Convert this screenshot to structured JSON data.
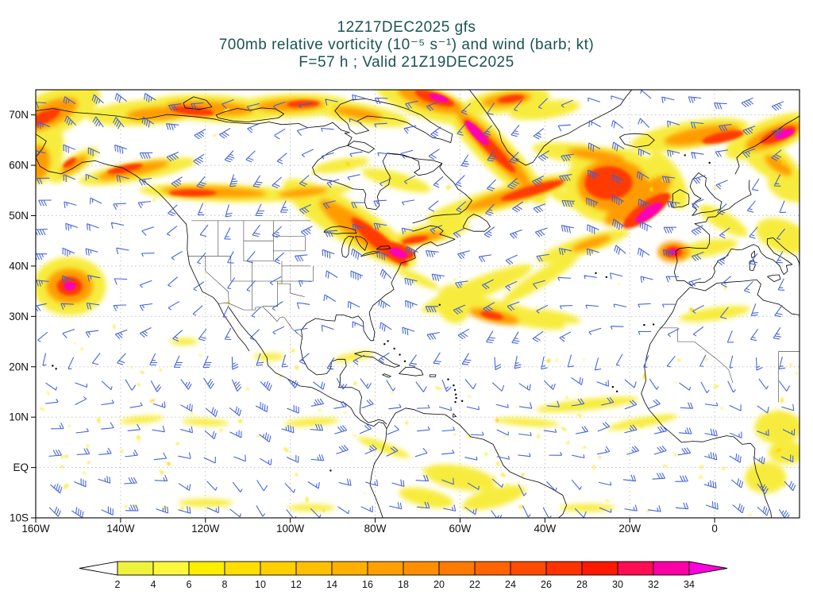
{
  "title": {
    "line1": "12Z17DEC2025 gfs",
    "line2": "700mb relative vorticity (10⁻⁵ s⁻¹) and wind (barb; kt)",
    "line3": "F=57 h ; Valid 21Z19DEC2025"
  },
  "colors": {
    "title_text": "#1a5353",
    "axis_text": "#111111",
    "coast": "#000000",
    "state_border": "#1a1a1a",
    "grid": "#bbbbbb",
    "barb": "#3f5fdc",
    "map_border": "#000000",
    "background": "#ffffff"
  },
  "chart_data": {
    "type": "heatmap",
    "model_run": "12Z17DEC2025 gfs",
    "field_title": "700mb relative vorticity (10⁻⁵ s⁻¹) and wind (barb; kt)",
    "valid": "F=57 h ; Valid 21Z19DEC2025",
    "extent": {
      "lon_min": -160,
      "lon_max": 20,
      "lat_min": -10,
      "lat_max": 75
    },
    "lat_ticks": [
      {
        "label": "70N",
        "value": 70
      },
      {
        "label": "60N",
        "value": 60
      },
      {
        "label": "50N",
        "value": 50
      },
      {
        "label": "40N",
        "value": 40
      },
      {
        "label": "30N",
        "value": 30
      },
      {
        "label": "20N",
        "value": 20
      },
      {
        "label": "10N",
        "value": 10
      },
      {
        "label": "EQ",
        "value": 0
      },
      {
        "label": "10S",
        "value": -10
      }
    ],
    "lon_ticks": [
      {
        "label": "160W",
        "value": -160
      },
      {
        "label": "140W",
        "value": -140
      },
      {
        "label": "120W",
        "value": -120
      },
      {
        "label": "100W",
        "value": -100
      },
      {
        "label": "80W",
        "value": -80
      },
      {
        "label": "60W",
        "value": -60
      },
      {
        "label": "40W",
        "value": -40
      },
      {
        "label": "20W",
        "value": -20
      },
      {
        "label": "0",
        "value": 0
      }
    ],
    "colorbar": {
      "values": [
        2,
        4,
        6,
        8,
        10,
        12,
        14,
        16,
        18,
        20,
        22,
        24,
        26,
        28,
        30,
        32,
        34
      ],
      "cell_colors": [
        "#eef23c",
        "#fcf83c",
        "#ffee00",
        "#ffdf00",
        "#ffd000",
        "#ffc000",
        "#ffb000",
        "#ffa000",
        "#ff8f00",
        "#ff7a00",
        "#ff6400",
        "#ff4b00",
        "#ff3200",
        "#ff1900",
        "#ff0d52",
        "#fb00a6"
      ],
      "left_arrow_color": "#ffffff",
      "right_arrow_color": "#ff00de",
      "unit": "10⁻⁵ s⁻¹"
    },
    "vorticity_levels": {
      "y": "#f7ec3d",
      "o": "#ff9b00",
      "r": "#ff3b00",
      "m": "#ff00b8"
    },
    "vorticity_features": [
      [
        -156,
        70.5,
        130,
        55,
        -25,
        "y"
      ],
      [
        -157,
        70,
        80,
        30,
        -25,
        "o"
      ],
      [
        -158,
        69.5,
        44,
        15,
        -25,
        "r"
      ],
      [
        -159,
        63,
        60,
        85,
        10,
        "y"
      ],
      [
        -159.5,
        60.5,
        30,
        44,
        10,
        "o"
      ],
      [
        -151,
        60,
        72,
        22,
        -35,
        "y"
      ],
      [
        -151,
        60,
        40,
        12,
        -35,
        "o"
      ],
      [
        -152,
        60.5,
        20,
        8,
        -35,
        "r"
      ],
      [
        -136,
        58.8,
        150,
        24,
        -10,
        "y"
      ],
      [
        -137,
        59,
        92,
        14,
        -12,
        "o"
      ],
      [
        -139,
        59.3,
        46,
        9,
        -12,
        "r"
      ],
      [
        -134,
        70.5,
        150,
        32,
        -4,
        "y"
      ],
      [
        -131,
        70.3,
        82,
        16,
        -4,
        "o"
      ],
      [
        -118,
        71.3,
        170,
        34,
        3,
        "y"
      ],
      [
        -119,
        71.3,
        110,
        18,
        3,
        "o"
      ],
      [
        -123,
        70.8,
        54,
        11,
        6,
        "r"
      ],
      [
        -100,
        71.8,
        150,
        30,
        -2,
        "y"
      ],
      [
        -100,
        71.9,
        86,
        15,
        -2,
        "o"
      ],
      [
        -97,
        72.2,
        42,
        9,
        -2,
        "r"
      ],
      [
        -84,
        70.3,
        130,
        26,
        10,
        "y"
      ],
      [
        -84,
        70.3,
        62,
        12,
        10,
        "o"
      ],
      [
        -68,
        72.5,
        130,
        40,
        18,
        "y"
      ],
      [
        -67,
        73,
        86,
        24,
        18,
        "o"
      ],
      [
        -66,
        73.3,
        52,
        14,
        18,
        "r"
      ],
      [
        -65,
        73.4,
        26,
        8,
        18,
        "m"
      ],
      [
        -49,
        72.8,
        110,
        30,
        -8,
        "y"
      ],
      [
        -49,
        73,
        62,
        16,
        -8,
        "o"
      ],
      [
        -48,
        73.2,
        34,
        9,
        -8,
        "r"
      ],
      [
        -52,
        63,
        185,
        42,
        46,
        "y"
      ],
      [
        -52,
        63.2,
        132,
        24,
        46,
        "o"
      ],
      [
        -53,
        63.8,
        92,
        14,
        46,
        "r"
      ],
      [
        -56,
        66.4,
        42,
        11,
        46,
        "m"
      ],
      [
        -116,
        54.5,
        210,
        22,
        2,
        "y"
      ],
      [
        -118,
        54.7,
        132,
        13,
        2,
        "o"
      ],
      [
        -123,
        54.5,
        60,
        9,
        0,
        "r"
      ],
      [
        -96,
        54.5,
        112,
        16,
        -6,
        "y"
      ],
      [
        -97,
        54.6,
        62,
        10,
        -6,
        "o"
      ],
      [
        -86,
        48.5,
        195,
        50,
        32,
        "y"
      ],
      [
        -83,
        46.8,
        132,
        28,
        36,
        "o"
      ],
      [
        -79,
        44.8,
        92,
        18,
        40,
        "r"
      ],
      [
        -75,
        43,
        48,
        20,
        15,
        "r"
      ],
      [
        -74.6,
        42.6,
        24,
        11,
        20,
        "m"
      ],
      [
        -67,
        46.5,
        100,
        24,
        -12,
        "y"
      ],
      [
        -69,
        45.6,
        58,
        13,
        -10,
        "o"
      ],
      [
        -70.6,
        45.2,
        34,
        8,
        -10,
        "r"
      ],
      [
        -50,
        53.5,
        200,
        28,
        -16,
        "y"
      ],
      [
        -47,
        54.2,
        132,
        17,
        -16,
        "o"
      ],
      [
        -43,
        55,
        82,
        12,
        -16,
        "r"
      ],
      [
        -24,
        56,
        122,
        96,
        0,
        "y"
      ],
      [
        -24,
        56,
        88,
        66,
        0,
        "o"
      ],
      [
        -25,
        56.5,
        60,
        42,
        0,
        "r"
      ],
      [
        -30,
        52,
        102,
        20,
        20,
        "y"
      ],
      [
        -18,
        53,
        100,
        30,
        -35,
        "o"
      ],
      [
        -16,
        51,
        72,
        22,
        -35,
        "r"
      ],
      [
        -15.5,
        50.6,
        40,
        13,
        -35,
        "m"
      ],
      [
        -11,
        57,
        80,
        36,
        60,
        "y"
      ],
      [
        -30,
        62,
        140,
        26,
        8,
        "y"
      ],
      [
        -28,
        62,
        72,
        13,
        8,
        "o"
      ],
      [
        -6,
        66,
        150,
        34,
        -10,
        "y"
      ],
      [
        -3,
        66,
        96,
        20,
        -10,
        "o"
      ],
      [
        2,
        65.6,
        54,
        13,
        -12,
        "r"
      ],
      [
        13,
        65.8,
        120,
        42,
        -22,
        "y"
      ],
      [
        14,
        65.8,
        76,
        24,
        -22,
        "o"
      ],
      [
        15,
        66,
        48,
        15,
        -22,
        "r"
      ],
      [
        16.5,
        66.2,
        26,
        10,
        -22,
        "m"
      ],
      [
        13,
        61,
        90,
        40,
        35,
        "y"
      ],
      [
        15,
        60,
        40,
        15,
        35,
        "o"
      ],
      [
        19,
        56,
        70,
        42,
        10,
        "y"
      ],
      [
        16,
        46,
        70,
        40,
        20,
        "y"
      ],
      [
        -152,
        36,
        92,
        74,
        0,
        "y"
      ],
      [
        -152,
        36,
        58,
        44,
        0,
        "o"
      ],
      [
        -152,
        36,
        32,
        24,
        0,
        "r"
      ],
      [
        -152,
        36,
        15,
        11,
        0,
        "m"
      ],
      [
        -56,
        35.5,
        150,
        26,
        -22,
        "y"
      ],
      [
        -49,
        30.8,
        152,
        24,
        14,
        "y"
      ],
      [
        -61.5,
        32.5,
        50,
        42,
        75,
        "y"
      ],
      [
        -52,
        30,
        64,
        16,
        12,
        "o"
      ],
      [
        -52.5,
        30.2,
        30,
        9,
        12,
        "r"
      ],
      [
        -41,
        37.5,
        112,
        20,
        -32,
        "y"
      ],
      [
        -31,
        44,
        122,
        22,
        -18,
        "y"
      ],
      [
        -29,
        44.5,
        52,
        11,
        -18,
        "o"
      ],
      [
        -9.7,
        42.8,
        40,
        26,
        0,
        "o"
      ],
      [
        -9.7,
        42.8,
        22,
        14,
        0,
        "r"
      ],
      [
        -9.7,
        42.8,
        11,
        7,
        0,
        "m"
      ],
      [
        -2,
        43.5,
        80,
        20,
        -10,
        "y"
      ],
      [
        2,
        49,
        70,
        22,
        30,
        "y"
      ],
      [
        0,
        30.5,
        90,
        16,
        -8,
        "y"
      ],
      [
        -38,
        30,
        70,
        14,
        10,
        "y"
      ],
      [
        -70,
        37.5,
        60,
        12,
        25,
        "y"
      ],
      [
        -30,
        12.5,
        130,
        14,
        -6,
        "y"
      ],
      [
        -17,
        9,
        90,
        12,
        -10,
        "y"
      ],
      [
        -44,
        9,
        80,
        10,
        4,
        "y"
      ],
      [
        -95,
        9,
        70,
        10,
        -4,
        "y"
      ],
      [
        -120,
        9,
        60,
        9,
        3,
        "y"
      ],
      [
        -135,
        9.5,
        56,
        9,
        -5,
        "y"
      ],
      [
        -78,
        4,
        70,
        12,
        20,
        "y"
      ],
      [
        -60,
        -2,
        92,
        30,
        10,
        "y"
      ],
      [
        -52,
        -6,
        82,
        24,
        -15,
        "y"
      ],
      [
        -68,
        -6,
        70,
        22,
        12,
        "y"
      ],
      [
        15,
        8,
        60,
        42,
        0,
        "y"
      ],
      [
        12,
        -2,
        52,
        40,
        0,
        "y"
      ],
      [
        17,
        3,
        46,
        30,
        0,
        "y"
      ],
      [
        -85,
        22,
        50,
        10,
        -10,
        "y"
      ],
      [
        -105,
        22,
        40,
        9,
        0,
        "y"
      ],
      [
        -125,
        25,
        36,
        9,
        0,
        "y"
      ],
      [
        -120,
        -7,
        70,
        10,
        0,
        "y"
      ],
      [
        -95,
        -8,
        60,
        9,
        0,
        "y"
      ],
      [
        -30,
        -8,
        70,
        10,
        0,
        "y"
      ],
      [
        -75,
        57,
        90,
        20,
        15,
        "y"
      ],
      [
        -88,
        60,
        72,
        16,
        -10,
        "y"
      ],
      [
        -40,
        71,
        90,
        22,
        -8,
        "y"
      ],
      [
        -60,
        50,
        70,
        16,
        -20,
        "y"
      ]
    ]
  }
}
